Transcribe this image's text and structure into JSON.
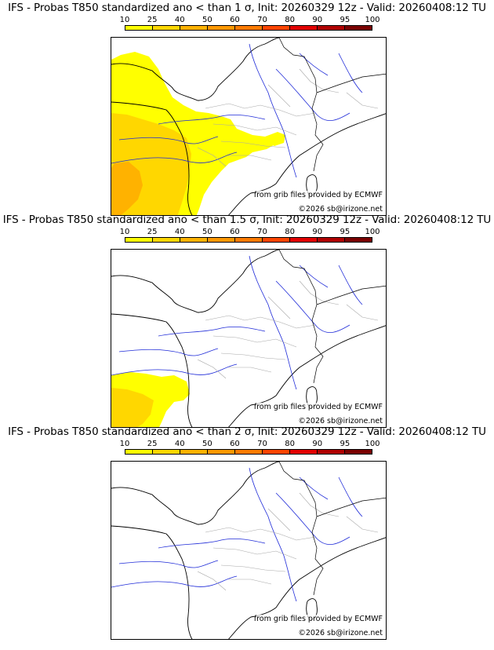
{
  "colorbar": {
    "ticks": [
      "10",
      "25",
      "40",
      "50",
      "60",
      "70",
      "80",
      "90",
      "95",
      "100"
    ],
    "colors": [
      "#ffff00",
      "#ffd700",
      "#ffb200",
      "#ff9800",
      "#ff7b00",
      "#ff4500",
      "#e20000",
      "#b00000",
      "#7a0000"
    ]
  },
  "panels": [
    {
      "title": "IFS - Probas T850  standardized ano < than 1 σ, Init: 20260329 12z - Valid: 20260408:12 TU",
      "credit_source": "from grib files provided by ECMWF",
      "credit_copyright": "©2026 sb@irizone.net"
    },
    {
      "title": "IFS - Probas T850  standardized ano < than 1.5 σ, Init: 20260329 12z - Valid: 20260408:12 TU",
      "credit_source": "from grib files provided by ECMWF",
      "credit_copyright": "©2026 sb@irizone.net"
    },
    {
      "title": "IFS - Probas T850  standardized ano < than 2 σ, Init: 20260329 12z - Valid: 20260408:12 TU",
      "credit_source": "from grib files provided by ECMWF",
      "credit_copyright": "©2026 sb@irizone.net"
    }
  ],
  "map_colors": {
    "coast": "#000000",
    "rivers": "#1f2bd8",
    "borders": "#a8a8a8"
  }
}
